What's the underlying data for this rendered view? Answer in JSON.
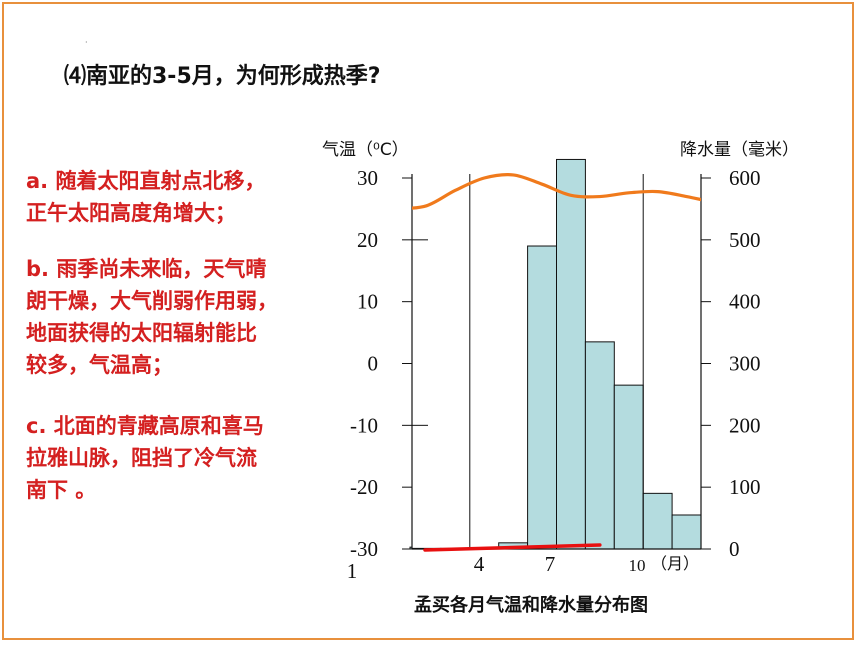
{
  "question": "⑷南亚的3-5月，为何形成热季?",
  "small_mark": "·",
  "answers": {
    "a": [
      "a. 随着太阳直射点北移，",
      "正午太阳高度角增大；"
    ],
    "b": [
      "b. 雨季尚未来临，天气晴",
      "朗干燥，大气削弱作用弱，",
      "地面获得的太阳辐射能比",
      "较多，气温高；"
    ],
    "c": [
      "c. 北面的青藏高原和喜马",
      "拉雅山脉，阻挡了冷气流",
      "南下  。"
    ]
  },
  "colors": {
    "bar_fill": "#b4dcdf",
    "temp_line": "#f07a1c",
    "answer_text": "#d42020",
    "frame": "#e8903c",
    "red_marker": "#e81010"
  },
  "chart_data": {
    "type": "bar",
    "title": "孟买各月气温和降水量分布图",
    "left_axis_label": "气温（⁰C）",
    "right_axis_label": "降水量（毫米）",
    "x_unit_label": "（月）",
    "x_tick_labels": [
      "1",
      "4",
      "7",
      "10"
    ],
    "x_tick_months": [
      1,
      4,
      7,
      10
    ],
    "left_axis": {
      "min": -30,
      "max": 30,
      "ticks": [
        "30",
        "20",
        "10",
        "0",
        "-10",
        "-20",
        "-30"
      ],
      "tick_values": [
        30,
        20,
        10,
        0,
        -10,
        -20,
        -30
      ]
    },
    "right_axis": {
      "min": 0,
      "max": 600,
      "ticks": [
        "600",
        "500",
        "400",
        "300",
        "200",
        "100",
        "0"
      ],
      "tick_values": [
        600,
        500,
        400,
        300,
        200,
        100,
        0
      ]
    },
    "months": [
      1,
      2,
      3,
      4,
      5,
      6,
      7,
      8,
      9,
      10,
      11,
      12
    ],
    "series": [
      {
        "kind": "bar",
        "axis": "right",
        "values": [
          3,
          1,
          1,
          2,
          10,
          490,
          630,
          335,
          265,
          90,
          55,
          5
        ]
      },
      {
        "kind": "line",
        "axis": "left",
        "values": [
          25,
          25.5,
          28,
          30,
          30.5,
          29,
          27.2,
          27,
          27.6,
          27.8,
          27,
          26
        ]
      }
    ],
    "highlight": {
      "from_month": 2,
      "to_month": 8,
      "kind": "red marker along baseline"
    }
  }
}
